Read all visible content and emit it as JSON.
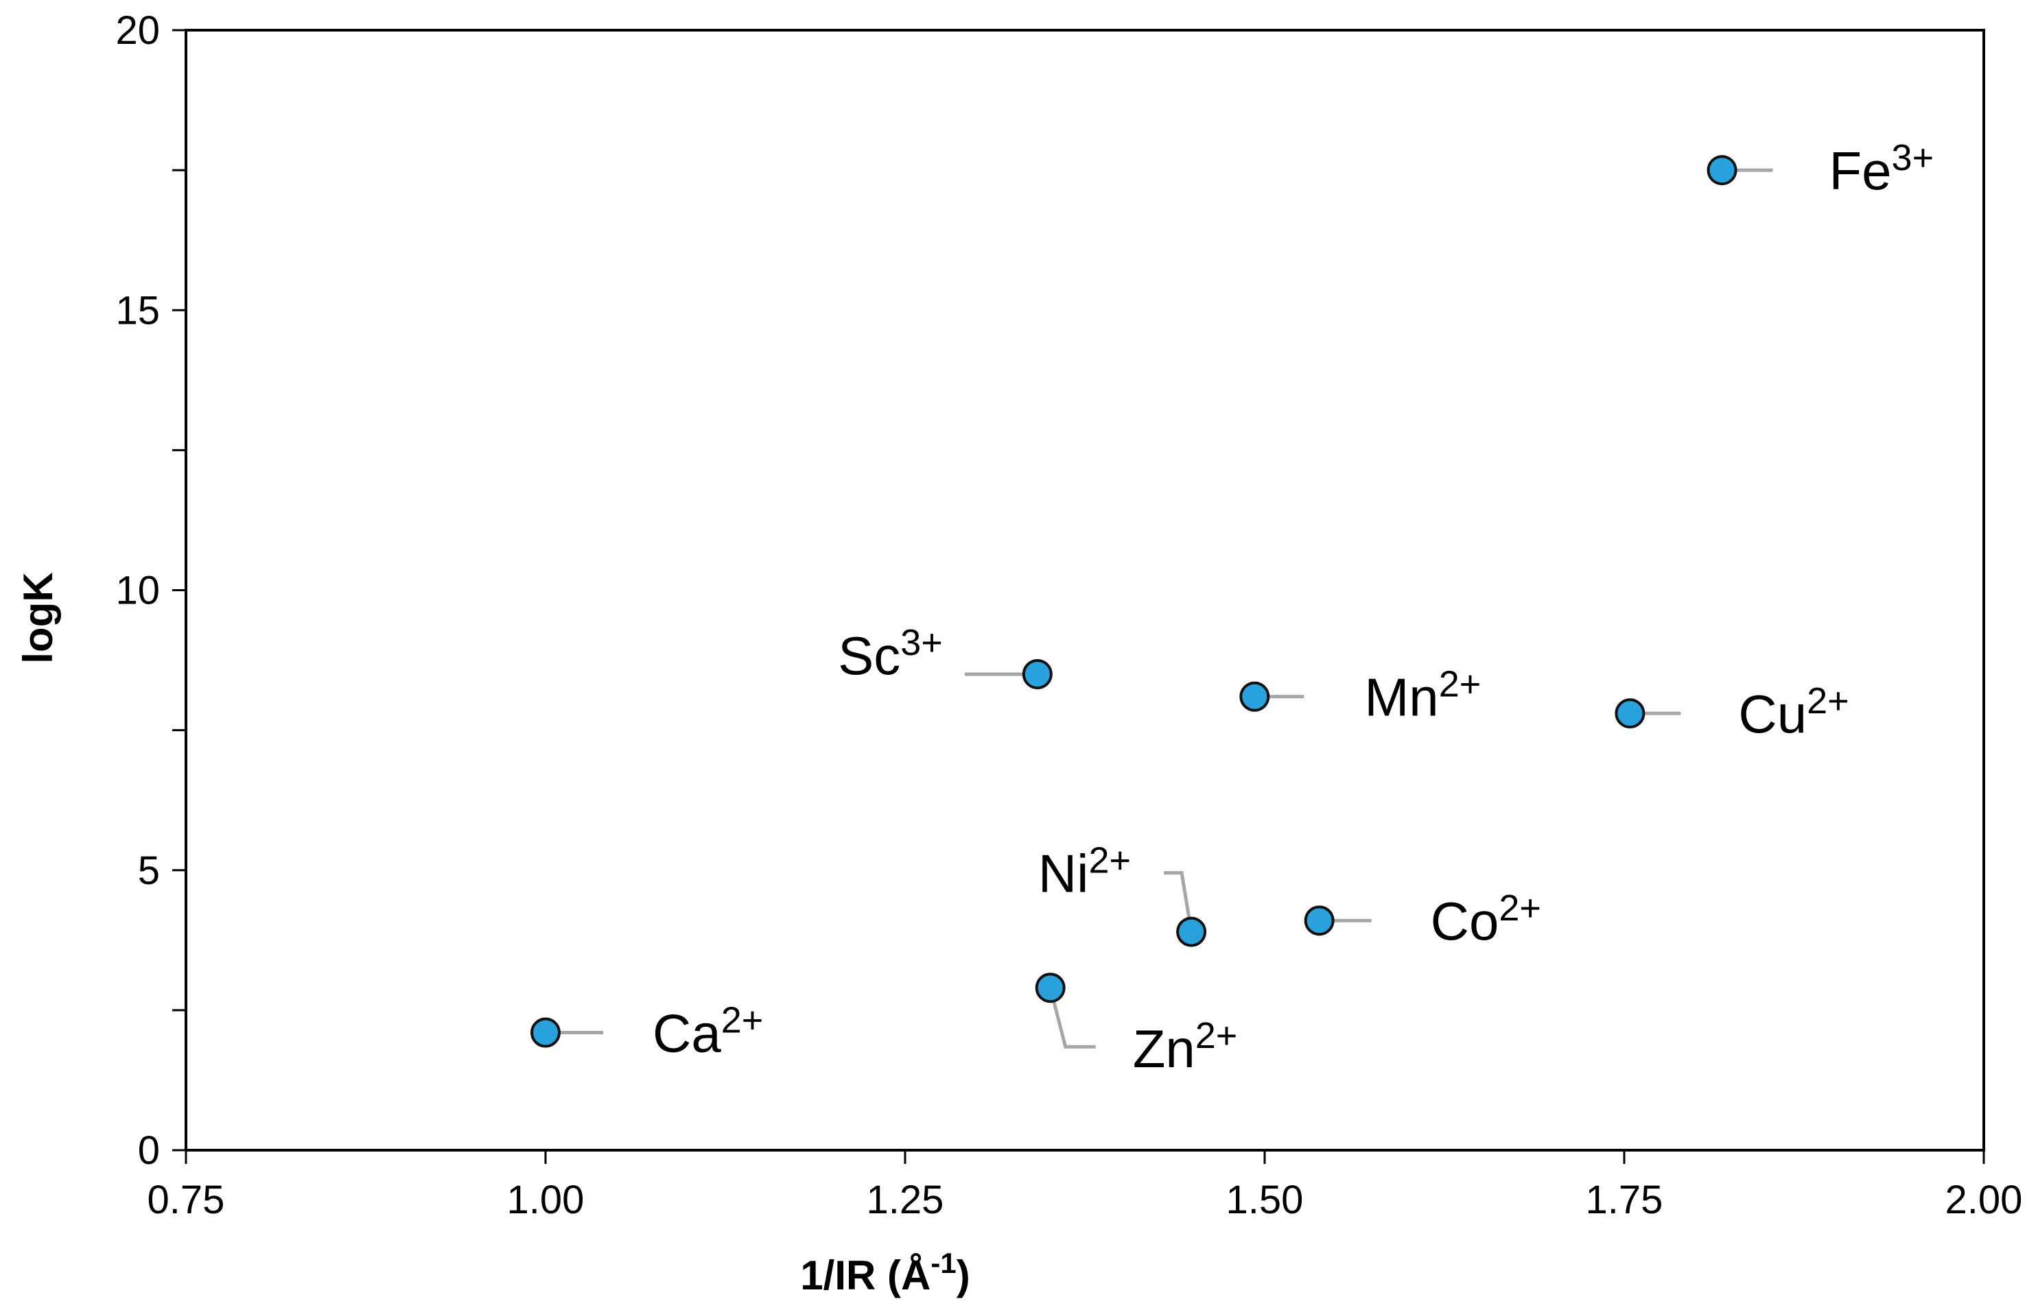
{
  "chart_data": {
    "type": "scatter",
    "title": "",
    "xlabel": {
      "base": "1/IR (Å",
      "sup": "-1",
      "tail": ")"
    },
    "ylabel": "logK",
    "xlim": [
      0.75,
      2.0
    ],
    "ylim": [
      0,
      20
    ],
    "xticks": [
      0.75,
      1.0,
      1.25,
      1.5,
      1.75,
      2.0
    ],
    "xtick_labels": [
      "0.75",
      "1.00",
      "1.25",
      "1.50",
      "1.75",
      "2.00"
    ],
    "yticks": [
      0,
      5,
      10,
      15,
      20
    ],
    "ytick_labels": [
      "0",
      "5",
      "10",
      "15",
      "20"
    ],
    "grid": false,
    "legend": "none",
    "marker_color": "#29A1DC",
    "marker_edge_color": "#111111",
    "leader_color": "#A6A6A6",
    "points": [
      {
        "ion": "Fe",
        "charge": "3+",
        "x": 1.818,
        "y": 17.5
      },
      {
        "ion": "Sc",
        "charge": "3+",
        "x": 1.342,
        "y": 8.5
      },
      {
        "ion": "Mn",
        "charge": "2+",
        "x": 1.493,
        "y": 8.1
      },
      {
        "ion": "Cu",
        "charge": "2+",
        "x": 1.754,
        "y": 7.8
      },
      {
        "ion": "Co",
        "charge": "2+",
        "x": 1.538,
        "y": 4.1
      },
      {
        "ion": "Ni",
        "charge": "2+",
        "x": 1.449,
        "y": 3.9
      },
      {
        "ion": "Zn",
        "charge": "2+",
        "x": 1.351,
        "y": 2.9
      },
      {
        "ion": "Ca",
        "charge": "2+",
        "x": 1.0,
        "y": 2.1
      }
    ]
  }
}
